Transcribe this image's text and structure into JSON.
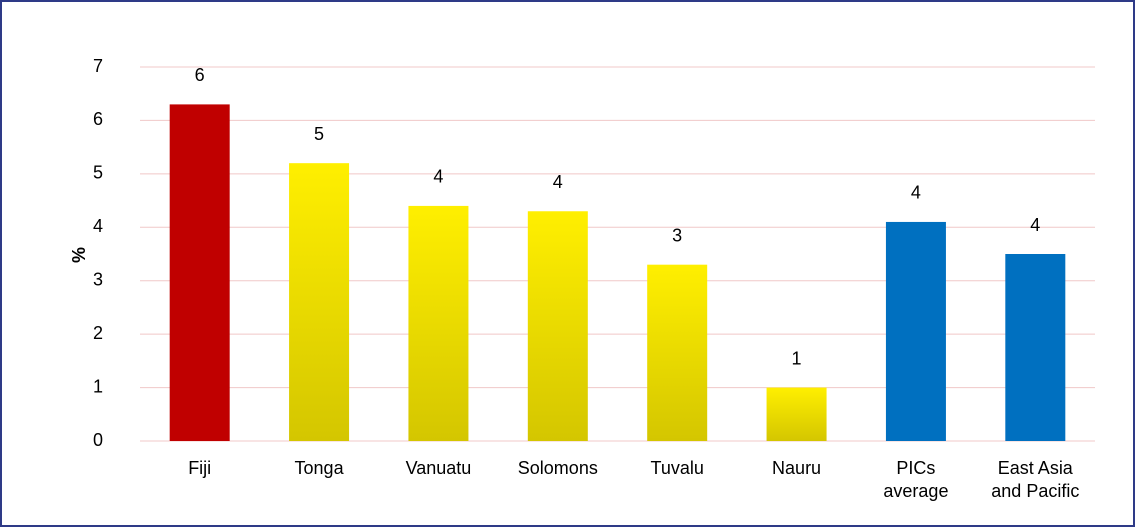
{
  "chart_data": {
    "type": "bar",
    "y_label": "%",
    "categories": [
      "Fiji",
      "Tonga",
      "Vanuatu",
      "Solomons",
      "Tuvalu",
      "Nauru",
      "PICs\naverage",
      "East Asia\nand Pacific"
    ],
    "values": [
      6.3,
      5.2,
      4.4,
      4.3,
      3.3,
      1.0,
      4.1,
      3.5
    ],
    "value_labels": [
      "6",
      "5",
      "4",
      "4",
      "3",
      "1",
      "4",
      "4"
    ],
    "colors": [
      "#c00000",
      "#ffef00",
      "#ffef00",
      "#ffef00",
      "#ffef00",
      "#ffef00",
      "#0070c0",
      "#0070c0"
    ],
    "ylim": [
      0,
      7
    ],
    "yticks": [
      0,
      1,
      2,
      3,
      4,
      5,
      6,
      7
    ],
    "grid": true
  }
}
